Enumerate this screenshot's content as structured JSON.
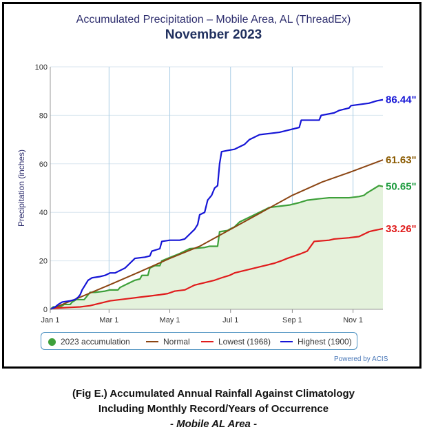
{
  "header": {
    "title": "Accumulated Precipitation – Mobile Area, AL (ThreadEx)",
    "subtitle": "November 2023"
  },
  "caption": {
    "line1": "(Fig E.) Accumulated Annual Rainfall Against  Climatology",
    "line2": "Including Monthly Record/Years of Occurrence",
    "line3": "- Mobile AL Area -"
  },
  "powered_by": "Powered by ACIS",
  "chart_data": {
    "type": "line",
    "ylabel": "Precipitation (inches)",
    "ylim": [
      0,
      100
    ],
    "xlim_days": [
      0,
      334
    ],
    "y_ticks": [
      0,
      20,
      40,
      60,
      80,
      100
    ],
    "x_ticks": [
      {
        "label": "Jan 1",
        "day": 0
      },
      {
        "label": "Mar 1",
        "day": 59
      },
      {
        "label": "May 1",
        "day": 120
      },
      {
        "label": "Jul 1",
        "day": 181
      },
      {
        "label": "Sep 1",
        "day": 243
      },
      {
        "label": "Nov 1",
        "day": 304
      }
    ],
    "grid": true,
    "legend_position": "bottom",
    "series": [
      {
        "name": "2023 accumulation",
        "color": "#3ea03a",
        "fill": "#e4f2dc",
        "end_label": "50.65\"",
        "points": [
          [
            0,
            0
          ],
          [
            3,
            1
          ],
          [
            10,
            1
          ],
          [
            14,
            2
          ],
          [
            20,
            2
          ],
          [
            22,
            3
          ],
          [
            26,
            4
          ],
          [
            34,
            4
          ],
          [
            36,
            5
          ],
          [
            40,
            7
          ],
          [
            45,
            7
          ],
          [
            55,
            7.5
          ],
          [
            60,
            8
          ],
          [
            68,
            8
          ],
          [
            70,
            9
          ],
          [
            75,
            10
          ],
          [
            80,
            11
          ],
          [
            85,
            12
          ],
          [
            90,
            12.5
          ],
          [
            92,
            14
          ],
          [
            98,
            14
          ],
          [
            100,
            17
          ],
          [
            105,
            18
          ],
          [
            110,
            18
          ],
          [
            112,
            20
          ],
          [
            118,
            21
          ],
          [
            124,
            22
          ],
          [
            130,
            23
          ],
          [
            135,
            24
          ],
          [
            140,
            25
          ],
          [
            155,
            25.5
          ],
          [
            160,
            26
          ],
          [
            168,
            26
          ],
          [
            170,
            32
          ],
          [
            178,
            32.5
          ],
          [
            180,
            33
          ],
          [
            185,
            34
          ],
          [
            190,
            36
          ],
          [
            195,
            37
          ],
          [
            200,
            38
          ],
          [
            205,
            39
          ],
          [
            210,
            40
          ],
          [
            215,
            41
          ],
          [
            220,
            42
          ],
          [
            230,
            42.5
          ],
          [
            240,
            43
          ],
          [
            250,
            44
          ],
          [
            258,
            45
          ],
          [
            268,
            45.5
          ],
          [
            280,
            46
          ],
          [
            300,
            46
          ],
          [
            310,
            46.5
          ],
          [
            315,
            47
          ],
          [
            318,
            48
          ],
          [
            322,
            49
          ],
          [
            326,
            50
          ],
          [
            330,
            51
          ],
          [
            334,
            50.65
          ]
        ]
      },
      {
        "name": "Normal",
        "color": "#8b4513",
        "end_label": "61.63\"",
        "points": [
          [
            0,
            0
          ],
          [
            30,
            5
          ],
          [
            59,
            10
          ],
          [
            90,
            15.5
          ],
          [
            120,
            21
          ],
          [
            150,
            26
          ],
          [
            181,
            33
          ],
          [
            212,
            40
          ],
          [
            243,
            47
          ],
          [
            273,
            52.5
          ],
          [
            304,
            57
          ],
          [
            334,
            61.63
          ]
        ]
      },
      {
        "name": "Lowest (1968)",
        "color": "#e01c1c",
        "end_label": "33.26\"",
        "points": [
          [
            0,
            0
          ],
          [
            5,
            0.5
          ],
          [
            20,
            0.8
          ],
          [
            30,
            1
          ],
          [
            40,
            1.5
          ],
          [
            50,
            2.5
          ],
          [
            55,
            3
          ],
          [
            60,
            3.5
          ],
          [
            70,
            4
          ],
          [
            80,
            4.5
          ],
          [
            90,
            5
          ],
          [
            100,
            5.5
          ],
          [
            110,
            6
          ],
          [
            118,
            6.5
          ],
          [
            125,
            7.5
          ],
          [
            135,
            8
          ],
          [
            140,
            9
          ],
          [
            145,
            10
          ],
          [
            155,
            11
          ],
          [
            165,
            12
          ],
          [
            172,
            13
          ],
          [
            180,
            14
          ],
          [
            185,
            15
          ],
          [
            195,
            16
          ],
          [
            205,
            17
          ],
          [
            215,
            18
          ],
          [
            225,
            19
          ],
          [
            232,
            20
          ],
          [
            238,
            21
          ],
          [
            245,
            22
          ],
          [
            252,
            23
          ],
          [
            258,
            24
          ],
          [
            265,
            28
          ],
          [
            280,
            28.5
          ],
          [
            285,
            29
          ],
          [
            300,
            29.5
          ],
          [
            310,
            30
          ],
          [
            315,
            31
          ],
          [
            320,
            32
          ],
          [
            325,
            32.5
          ],
          [
            334,
            33.26
          ]
        ]
      },
      {
        "name": "Highest (1900)",
        "color": "#1515d6",
        "end_label": "86.44\"",
        "points": [
          [
            0,
            0
          ],
          [
            5,
            1
          ],
          [
            8,
            2
          ],
          [
            12,
            3
          ],
          [
            20,
            3.5
          ],
          [
            25,
            4
          ],
          [
            28,
            5
          ],
          [
            30,
            6
          ],
          [
            32,
            8
          ],
          [
            35,
            10
          ],
          [
            38,
            12
          ],
          [
            42,
            13
          ],
          [
            50,
            13.5
          ],
          [
            55,
            14
          ],
          [
            60,
            15
          ],
          [
            65,
            15
          ],
          [
            70,
            16
          ],
          [
            75,
            17
          ],
          [
            80,
            19
          ],
          [
            85,
            21
          ],
          [
            95,
            21.5
          ],
          [
            100,
            22
          ],
          [
            102,
            24
          ],
          [
            110,
            25
          ],
          [
            112,
            28
          ],
          [
            120,
            28.5
          ],
          [
            130,
            28.5
          ],
          [
            135,
            29
          ],
          [
            140,
            31
          ],
          [
            145,
            33
          ],
          [
            148,
            35
          ],
          [
            150,
            39
          ],
          [
            155,
            40
          ],
          [
            158,
            45
          ],
          [
            162,
            47
          ],
          [
            165,
            50
          ],
          [
            168,
            51
          ],
          [
            170,
            60
          ],
          [
            172,
            65
          ],
          [
            178,
            65.5
          ],
          [
            185,
            66
          ],
          [
            190,
            67
          ],
          [
            195,
            68
          ],
          [
            200,
            70
          ],
          [
            205,
            71
          ],
          [
            210,
            72
          ],
          [
            220,
            72.5
          ],
          [
            230,
            73
          ],
          [
            240,
            74
          ],
          [
            250,
            75
          ],
          [
            252,
            78
          ],
          [
            270,
            78
          ],
          [
            272,
            80
          ],
          [
            285,
            81
          ],
          [
            290,
            82
          ],
          [
            300,
            83
          ],
          [
            302,
            84
          ],
          [
            320,
            85
          ],
          [
            328,
            86
          ],
          [
            334,
            86.44
          ]
        ]
      }
    ]
  }
}
